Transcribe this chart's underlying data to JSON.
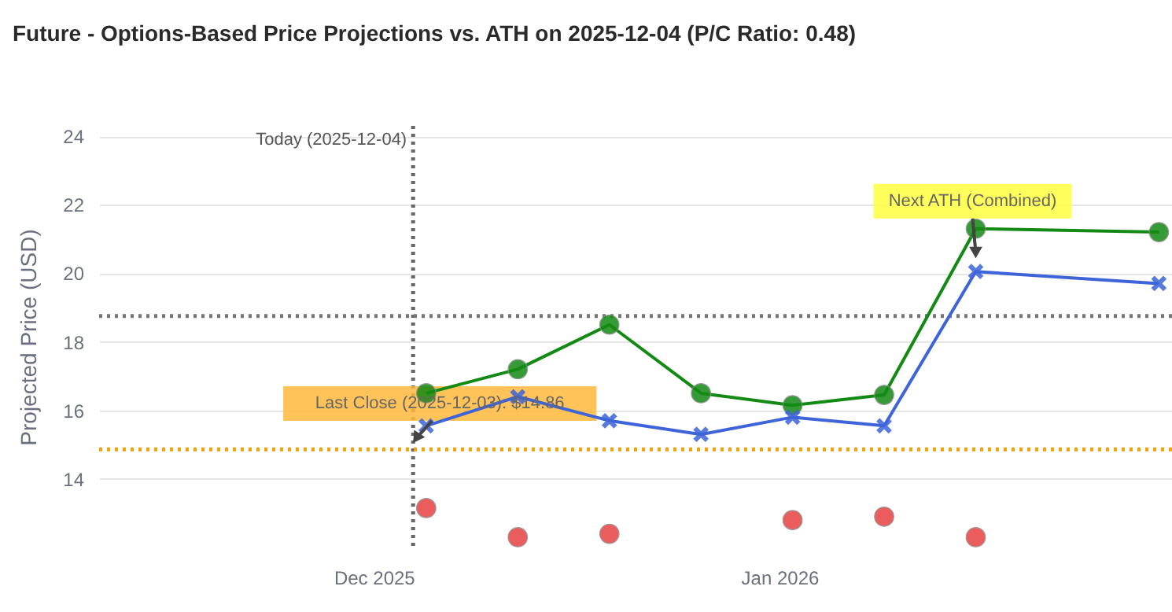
{
  "chart_data": {
    "type": "line",
    "title": "Future - Options-Based Price Projections vs. ATH on 2025-12-04 (P/C Ratio: 0.48)",
    "ylabel": "Projected Price (USD)",
    "xlim": [
      "2025-11-10",
      "2026-01-31"
    ],
    "xticks": [
      {
        "value": "2025-12-01",
        "label": "Dec 2025"
      },
      {
        "value": "2026-01-01",
        "label": "Jan 2026"
      }
    ],
    "ylim": [
      12.0,
      24.3
    ],
    "yticks": [
      14,
      16,
      18,
      20,
      22,
      24
    ],
    "grid": "y",
    "series": [
      {
        "color": "#138a13",
        "marker": "circle",
        "x": [
          "2025-12-05",
          "2025-12-12",
          "2025-12-19",
          "2025-12-26",
          "2026-01-02",
          "2026-01-09",
          "2026-01-16",
          "2026-01-30"
        ],
        "values": [
          16.5,
          17.2,
          18.5,
          16.5,
          16.15,
          16.45,
          21.3,
          21.2
        ]
      },
      {
        "color": "#3d64d8",
        "marker": "cross",
        "x": [
          "2025-12-05",
          "2025-12-12",
          "2025-12-19",
          "2025-12-26",
          "2026-01-02",
          "2026-01-09",
          "2026-01-16",
          "2026-01-30"
        ],
        "values": [
          15.55,
          16.4,
          15.7,
          15.3,
          15.8,
          15.55,
          20.05,
          19.7
        ]
      },
      {
        "type": "scatter",
        "color": "#e84141",
        "marker": "circle",
        "x": [
          "2025-12-05",
          "2025-12-12",
          "2025-12-19",
          "2026-01-02",
          "2026-01-09",
          "2026-01-16"
        ],
        "values": [
          13.15,
          12.3,
          12.4,
          12.8,
          12.9,
          12.3
        ]
      }
    ],
    "ref_lines": [
      {
        "axis": "x",
        "value": "2025-12-04",
        "label": "Today (2025-12-04)",
        "color": "#666666",
        "line_style": "dotted"
      },
      {
        "axis": "y",
        "value": 18.75,
        "color": "#777777",
        "line_style": "dotted"
      },
      {
        "axis": "y",
        "value": 14.86,
        "color": "#f0a30a",
        "line_style": "dotted"
      }
    ],
    "annotations": [
      {
        "text": "Last Close (2025-12-03): $14.86",
        "x": "2025-12-04",
        "y": 15.05
      },
      {
        "text": "Next ATH (Combined)",
        "x": "2026-01-16",
        "y": 20.45
      }
    ]
  }
}
